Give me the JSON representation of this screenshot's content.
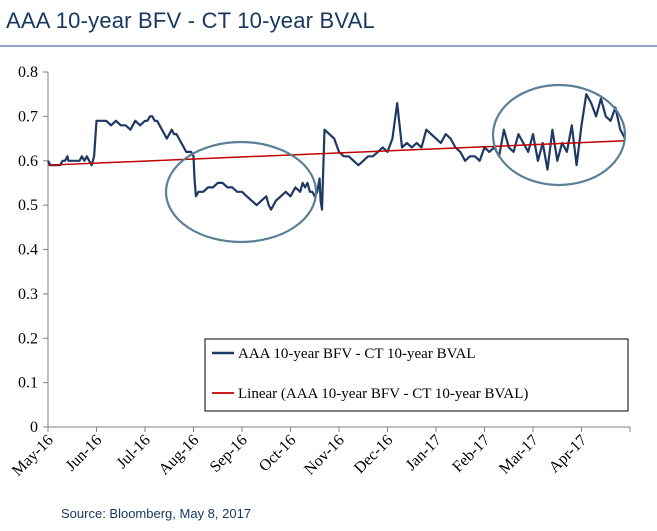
{
  "header": {
    "title": "AAA 10-year BFV - CT 10-year BVAL"
  },
  "footer": {
    "source": "Source: Bloomberg, May 8, 2017"
  },
  "colors": {
    "series": "#1f3864",
    "trend": "#c00000",
    "ellipse": "#5b7f95",
    "title": "#17375e"
  },
  "chart_data": {
    "type": "line",
    "title": "",
    "xlabel": "",
    "ylabel": "",
    "ylim": [
      0,
      0.8
    ],
    "yticks": [
      "0",
      "0.1",
      "0.2",
      "0.3",
      "0.4",
      "0.5",
      "0.6",
      "0.7",
      "0.8"
    ],
    "xticks": [
      "May-16",
      "Jun-16",
      "Jul-16",
      "Aug-16",
      "Sep-16",
      "Oct-16",
      "Nov-16",
      "Dec-16",
      "Jan-17",
      "Feb-17",
      "Mar-17",
      "Apr-17"
    ],
    "grid": false,
    "legend_position": "bottom-right",
    "legend": [
      "AAA 10-year BFV - CT 10-year BVAL",
      "Linear (AAA 10-year BFV - CT 10-year BVAL)"
    ],
    "series": [
      {
        "name": "AAA 10-year BFV - CT 10-year BVAL",
        "x": [
          0,
          0.05,
          0.1,
          0.15,
          0.2,
          0.25,
          0.3,
          0.35,
          0.4,
          0.42,
          0.45,
          0.5,
          0.55,
          0.6,
          0.65,
          0.7,
          0.75,
          0.8,
          0.85,
          0.9,
          0.95,
          1.0,
          1.05,
          1.1,
          1.15,
          1.2,
          1.3,
          1.4,
          1.5,
          1.6,
          1.7,
          1.8,
          1.9,
          2.0,
          2.05,
          2.1,
          2.15,
          2.2,
          2.25,
          2.3,
          2.35,
          2.4,
          2.45,
          2.5,
          2.55,
          2.6,
          2.65,
          2.7,
          2.75,
          2.8,
          2.85,
          2.9,
          2.95,
          3.0,
          3.02,
          3.05,
          3.1,
          3.15,
          3.2,
          3.3,
          3.4,
          3.5,
          3.6,
          3.7,
          3.8,
          3.9,
          4.0,
          4.1,
          4.2,
          4.3,
          4.4,
          4.5,
          4.55,
          4.6,
          4.7,
          4.8,
          4.9,
          5.0,
          5.1,
          5.2,
          5.25,
          5.3,
          5.35,
          5.4,
          5.45,
          5.5,
          5.55,
          5.6,
          5.62,
          5.65,
          5.7,
          5.8,
          5.9,
          6.0,
          6.1,
          6.2,
          6.3,
          6.4,
          6.5,
          6.6,
          6.7,
          6.8,
          6.9,
          7.0,
          7.1,
          7.2,
          7.3,
          7.4,
          7.5,
          7.6,
          7.7,
          7.8,
          7.9,
          8.0,
          8.1,
          8.2,
          8.3,
          8.4,
          8.5,
          8.6,
          8.7,
          8.8,
          8.9,
          9.0,
          9.1,
          9.2,
          9.3,
          9.4,
          9.5,
          9.6,
          9.7,
          9.8,
          9.9,
          10.0,
          10.1,
          10.2,
          10.3,
          10.4,
          10.5,
          10.6,
          10.7,
          10.8,
          10.9,
          11.0,
          11.1,
          11.2,
          11.3,
          11.4,
          11.5,
          11.6,
          11.7,
          11.8,
          11.9
        ],
        "values": [
          0.6,
          0.59,
          0.59,
          0.59,
          0.59,
          0.59,
          0.6,
          0.6,
          0.61,
          0.6,
          0.6,
          0.6,
          0.6,
          0.6,
          0.6,
          0.61,
          0.6,
          0.61,
          0.6,
          0.59,
          0.61,
          0.69,
          0.69,
          0.69,
          0.69,
          0.69,
          0.68,
          0.69,
          0.68,
          0.68,
          0.67,
          0.69,
          0.68,
          0.69,
          0.69,
          0.7,
          0.7,
          0.69,
          0.69,
          0.68,
          0.67,
          0.66,
          0.65,
          0.66,
          0.67,
          0.66,
          0.66,
          0.65,
          0.64,
          0.63,
          0.62,
          0.62,
          0.62,
          0.61,
          0.56,
          0.52,
          0.53,
          0.53,
          0.53,
          0.54,
          0.54,
          0.55,
          0.55,
          0.54,
          0.54,
          0.53,
          0.53,
          0.52,
          0.51,
          0.5,
          0.51,
          0.52,
          0.5,
          0.49,
          0.51,
          0.52,
          0.53,
          0.52,
          0.54,
          0.53,
          0.55,
          0.54,
          0.55,
          0.53,
          0.53,
          0.52,
          0.53,
          0.56,
          0.51,
          0.49,
          0.67,
          0.66,
          0.65,
          0.62,
          0.61,
          0.61,
          0.6,
          0.59,
          0.6,
          0.61,
          0.61,
          0.62,
          0.63,
          0.62,
          0.65,
          0.73,
          0.63,
          0.64,
          0.63,
          0.64,
          0.63,
          0.67,
          0.66,
          0.65,
          0.64,
          0.66,
          0.65,
          0.63,
          0.62,
          0.6,
          0.61,
          0.61,
          0.6,
          0.63,
          0.62,
          0.63,
          0.61,
          0.67,
          0.63,
          0.62,
          0.66,
          0.64,
          0.62,
          0.66,
          0.6,
          0.64,
          0.58,
          0.67,
          0.6,
          0.64,
          0.62,
          0.68,
          0.59,
          0.68,
          0.75,
          0.73,
          0.7,
          0.74,
          0.7,
          0.69,
          0.72,
          0.67,
          0.65
        ]
      },
      {
        "name": "Linear (AAA 10-year BFV - CT 10-year BVAL)",
        "x": [
          0,
          11.9
        ],
        "values": [
          0.59,
          0.645
        ]
      }
    ]
  }
}
